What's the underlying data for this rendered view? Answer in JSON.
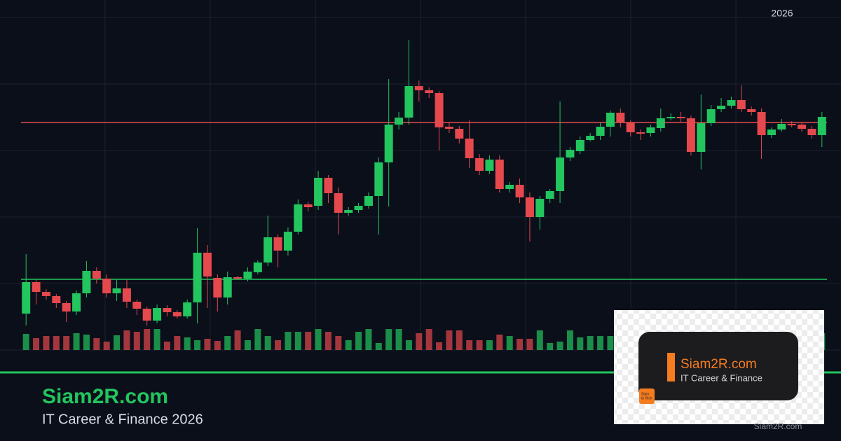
{
  "chart_data": {
    "type": "candlestick",
    "open": [
      52,
      97,
      83,
      77,
      67,
      55,
      81,
      113,
      102,
      81,
      88,
      69,
      59,
      42,
      60,
      54,
      48,
      68,
      139,
      103,
      75,
      104,
      102,
      111,
      125,
      161,
      142,
      169,
      208,
      206,
      246,
      224,
      196,
      200,
      206,
      220,
      268,
      322,
      332,
      377,
      371,
      367,
      319,
      316,
      302,
      274,
      256,
      272,
      230,
      236,
      218,
      190,
      216,
      227,
      275,
      284,
      300,
      306,
      319,
      339,
      325,
      311,
      310,
      317,
      331,
      333,
      331,
      283,
      324,
      344,
      349,
      357,
      344,
      340,
      307,
      315,
      323,
      322,
      316,
      307
    ],
    "high": [
      137,
      100,
      87,
      80,
      70,
      85,
      127,
      118,
      108,
      100,
      100,
      72,
      62,
      65,
      64,
      57,
      72,
      174,
      150,
      108,
      112,
      106,
      118,
      128,
      192,
      165,
      175,
      215,
      212,
      256,
      250,
      232,
      204,
      210,
      225,
      275,
      387,
      340,
      443,
      385,
      375,
      370,
      325,
      320,
      328,
      280,
      278,
      278,
      240,
      245,
      225,
      220,
      230,
      355,
      290,
      305,
      310,
      325,
      342,
      345,
      328,
      315,
      322,
      345,
      338,
      340,
      335,
      365,
      350,
      360,
      362,
      378,
      348,
      345,
      318,
      330,
      327,
      325,
      320,
      340
    ],
    "low": [
      35,
      65,
      72,
      60,
      40,
      50,
      75,
      95,
      75,
      70,
      60,
      50,
      35,
      38,
      48,
      45,
      45,
      38,
      60,
      55,
      65,
      100,
      98,
      108,
      120,
      118,
      135,
      165,
      198,
      200,
      210,
      165,
      192,
      196,
      202,
      165,
      205,
      315,
      322,
      355,
      360,
      285,
      310,
      295,
      260,
      250,
      252,
      225,
      225,
      210,
      155,
      172,
      210,
      210,
      270,
      280,
      298,
      300,
      305,
      318,
      305,
      300,
      305,
      312,
      328,
      325,
      278,
      258,
      320,
      340,
      345,
      340,
      335,
      273,
      303,
      312,
      318,
      312,
      302,
      290
    ],
    "close": [
      97,
      83,
      77,
      67,
      55,
      81,
      113,
      102,
      81,
      88,
      69,
      59,
      42,
      60,
      54,
      48,
      68,
      139,
      105,
      75,
      104,
      102,
      112,
      125,
      161,
      142,
      169,
      208,
      204,
      246,
      224,
      196,
      200,
      206,
      220,
      268,
      322,
      332,
      377,
      371,
      367,
      318,
      316,
      302,
      274,
      256,
      272,
      230,
      236,
      218,
      190,
      216,
      227,
      275,
      286,
      300,
      306,
      319,
      339,
      325,
      311,
      309,
      318,
      331,
      333,
      331,
      283,
      324,
      344,
      349,
      357,
      344,
      340,
      307,
      315,
      323,
      321,
      316,
      307,
      333
    ],
    "volume": [
      23,
      17,
      20,
      20,
      20,
      24,
      22,
      17,
      12,
      21,
      28,
      26,
      30,
      30,
      12,
      20,
      18,
      14,
      16,
      13,
      20,
      28,
      14,
      30,
      20,
      14,
      26,
      26,
      26,
      30,
      26,
      20,
      14,
      26,
      30,
      10,
      30,
      30,
      14,
      24,
      30,
      11,
      28,
      28,
      14,
      14,
      14,
      22,
      20,
      16,
      16,
      28,
      10,
      12,
      28,
      18,
      20,
      20,
      20,
      24,
      22,
      17,
      12,
      21,
      28,
      26,
      30,
      30,
      12,
      20,
      18,
      14,
      16,
      13,
      20,
      28,
      14,
      30,
      20,
      24
    ],
    "ylim": [
      0,
      475
    ],
    "volume_lim": [
      0,
      100
    ],
    "levels": [
      {
        "value": 325,
        "color": "#e5484d"
      },
      {
        "value": 101,
        "color": "#22c55e"
      }
    ],
    "up_color": "#22c55e",
    "down_color": "#e5484d",
    "grid": true,
    "year": "2026"
  },
  "brand": {
    "title": "Siam2R.com",
    "subtitle": "IT Career & Finance 2026",
    "logo_title": "Siam2R.com",
    "logo_subtitle": "IT Career & Finance",
    "badge": [
      "Siam",
      "to Rich"
    ],
    "footer": "Siam2R.com"
  }
}
